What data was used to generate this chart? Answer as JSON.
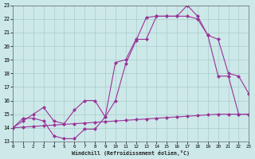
{
  "xlabel": "Windchill (Refroidissement éolien,°C)",
  "xlim": [
    0,
    23
  ],
  "ylim": [
    13,
    23
  ],
  "xticks": [
    0,
    1,
    2,
    3,
    4,
    5,
    6,
    7,
    8,
    9,
    10,
    11,
    12,
    13,
    14,
    15,
    16,
    17,
    18,
    19,
    20,
    21,
    22,
    23
  ],
  "yticks": [
    13,
    14,
    15,
    16,
    17,
    18,
    19,
    20,
    21,
    22,
    23
  ],
  "bg_color": "#cce8e8",
  "grid_color": "#aacccc",
  "line_color": "#993399",
  "line1_x": [
    0,
    1,
    2,
    3,
    4,
    5,
    6,
    7,
    8,
    9,
    10,
    11,
    12,
    13,
    14,
    15,
    16,
    17,
    18,
    19,
    20,
    21,
    22,
    23
  ],
  "line1_y": [
    14.0,
    14.7,
    14.7,
    14.5,
    13.4,
    13.2,
    13.2,
    13.9,
    13.9,
    14.8,
    16.0,
    18.7,
    20.4,
    22.1,
    22.2,
    22.2,
    22.2,
    23.0,
    22.2,
    20.8,
    17.8,
    17.8,
    15.0,
    15.0
  ],
  "line2_x": [
    0,
    1,
    2,
    3,
    4,
    5,
    6,
    7,
    8,
    9,
    10,
    11,
    12,
    13,
    14,
    15,
    16,
    17,
    18,
    19,
    20,
    21,
    22,
    23
  ],
  "line2_y": [
    14.0,
    14.5,
    15.0,
    15.5,
    14.5,
    14.3,
    15.3,
    16.0,
    16.0,
    14.8,
    18.8,
    19.0,
    20.5,
    20.5,
    22.2,
    22.2,
    22.2,
    22.2,
    22.0,
    20.8,
    20.5,
    18.0,
    17.8,
    16.5
  ],
  "line3_x": [
    0,
    1,
    2,
    3,
    4,
    5,
    6,
    7,
    8,
    9,
    10,
    11,
    12,
    13,
    14,
    15,
    16,
    17,
    18,
    19,
    20,
    21,
    22,
    23
  ],
  "line3_y": [
    14.0,
    14.05,
    14.1,
    14.15,
    14.2,
    14.25,
    14.3,
    14.35,
    14.4,
    14.45,
    14.5,
    14.55,
    14.6,
    14.65,
    14.7,
    14.75,
    14.8,
    14.85,
    14.9,
    14.95,
    15.0,
    15.0,
    15.0,
    15.0
  ]
}
